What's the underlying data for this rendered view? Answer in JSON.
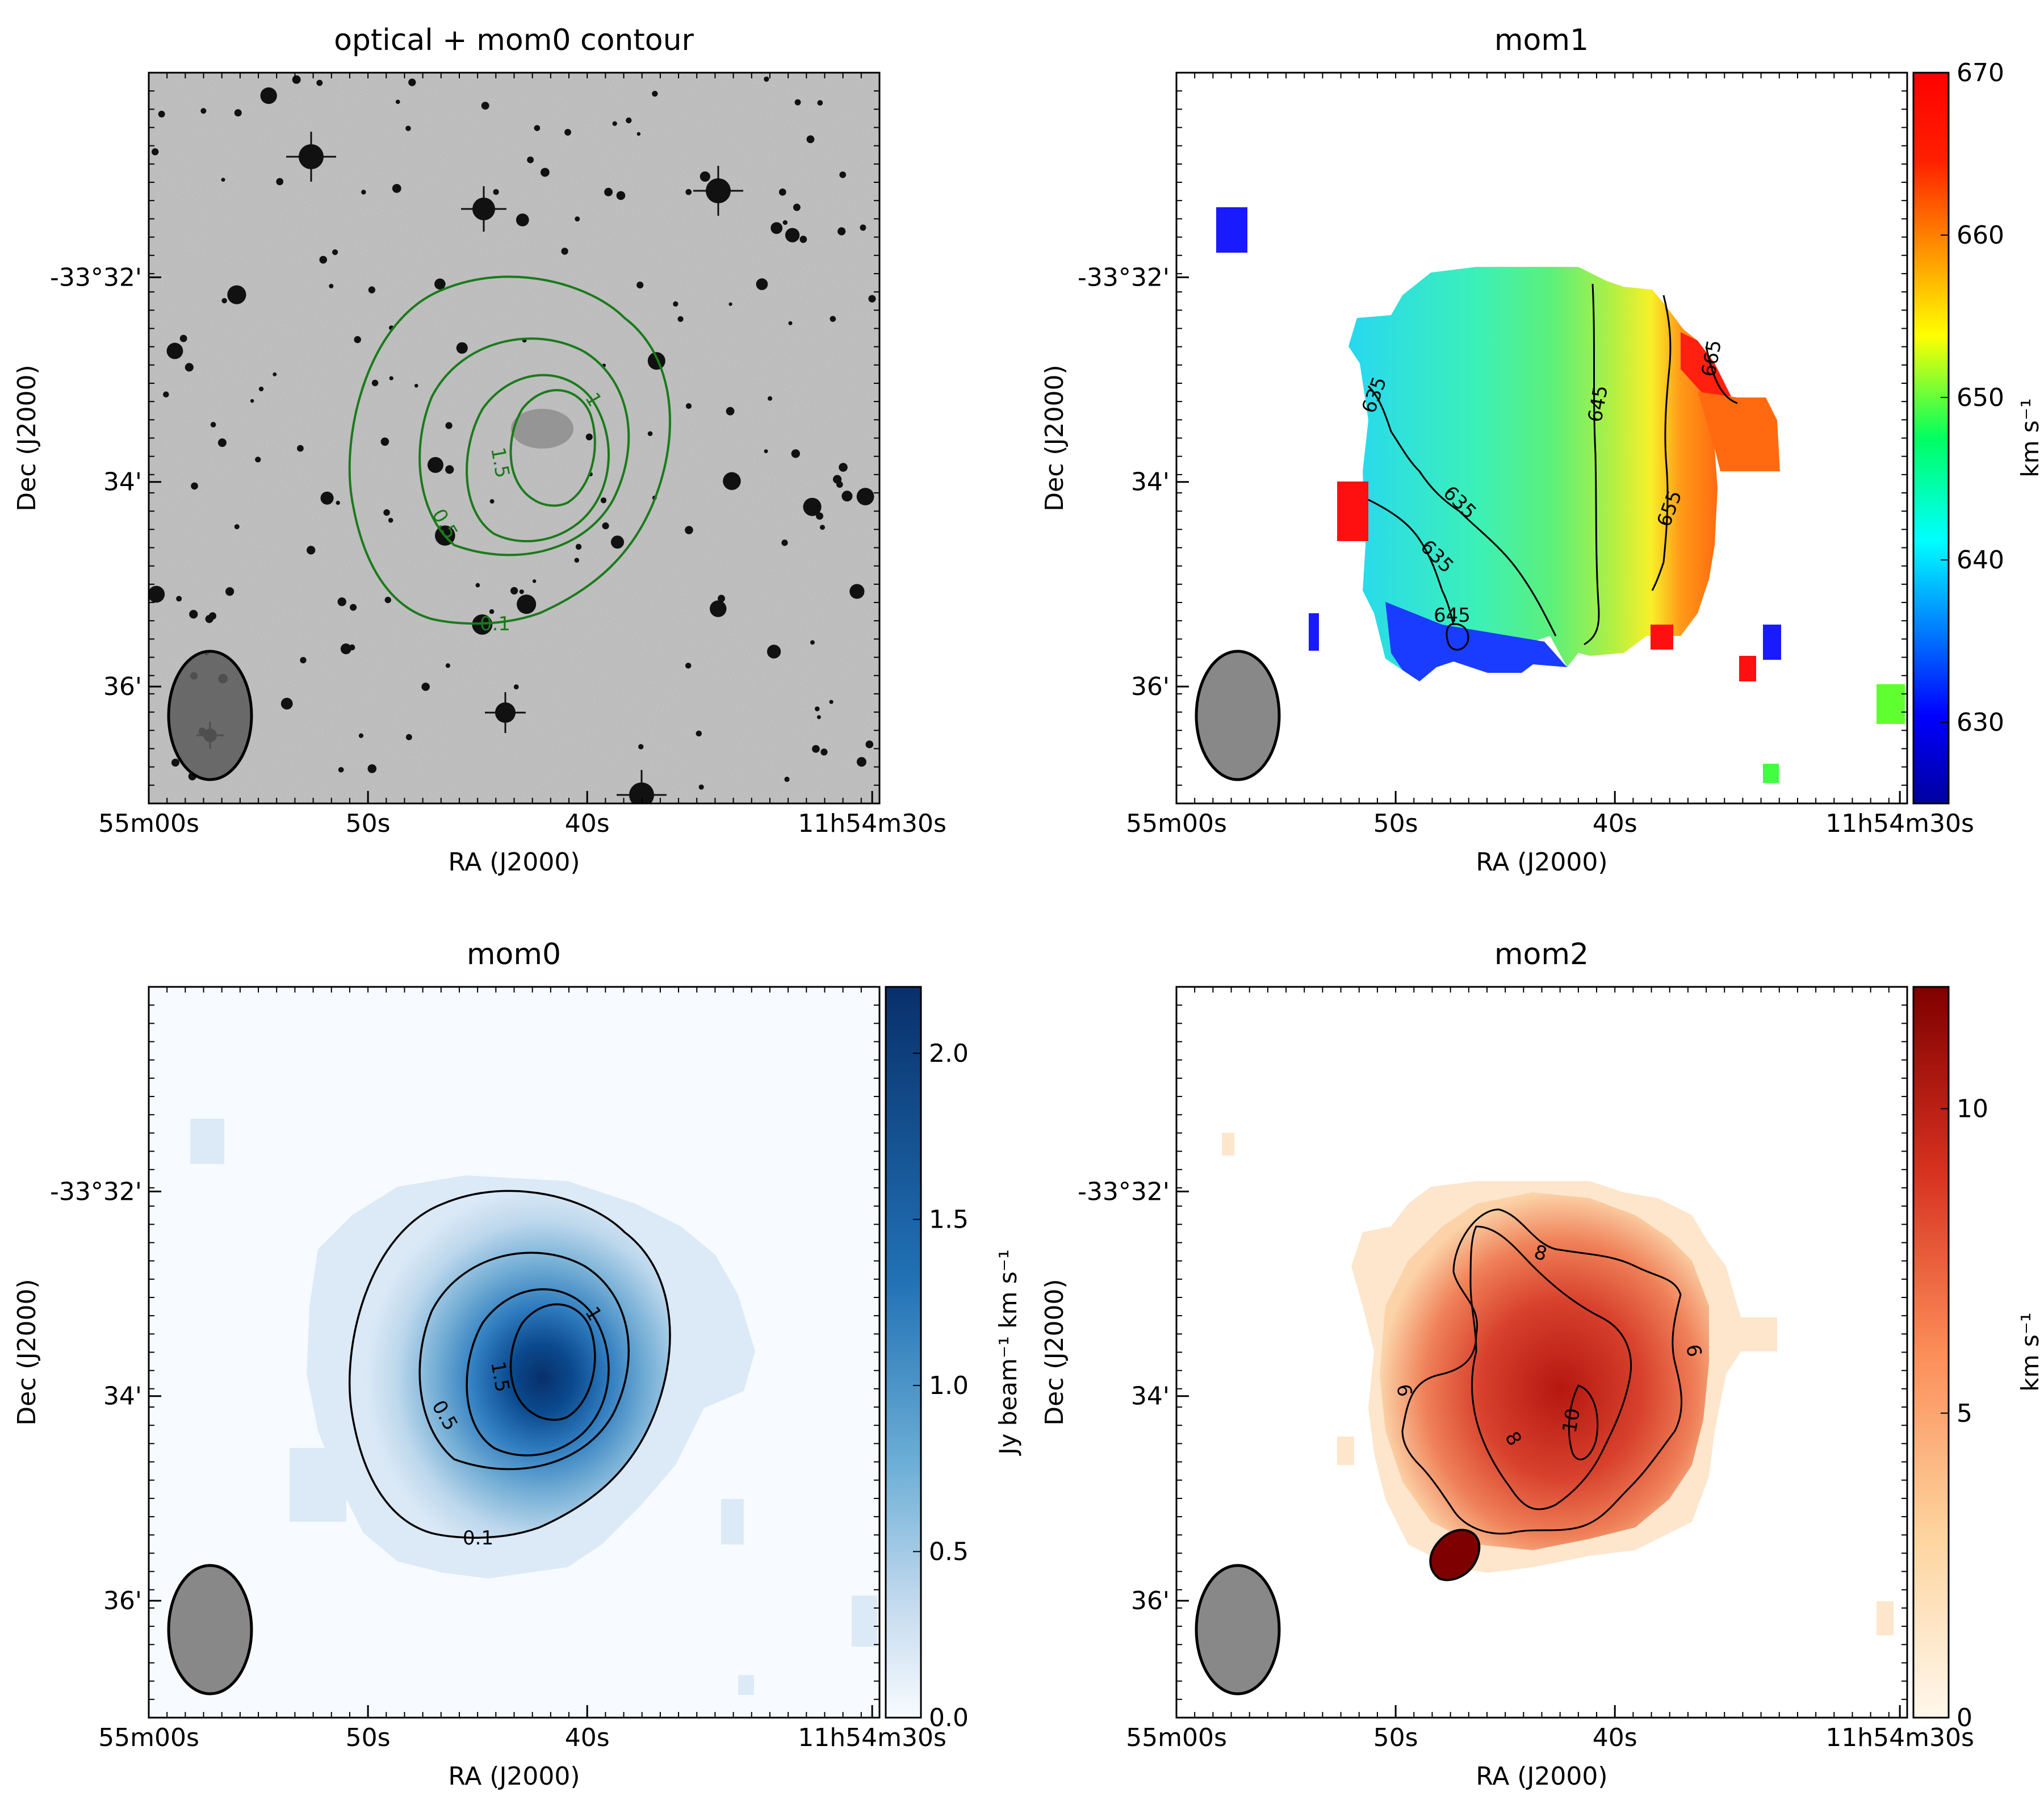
{
  "figure": {
    "xlabel": "RA (J2000)",
    "ylabel": "Dec (J2000)",
    "ra_ticks": [
      "55m00s",
      "50s",
      "40s",
      "11h54m30s"
    ],
    "dec_ticks": [
      "-33°32'",
      "34'",
      "36'"
    ]
  },
  "chart_data": [
    {
      "type": "heatmap",
      "title": "optical + mom0 contour",
      "xlabel": "RA (J2000)",
      "ylabel": "Dec (J2000)",
      "colormap": "gray",
      "contour_color": "#1a7a1a",
      "contour_levels": [
        "0.1",
        "0.5",
        "1",
        "1.5"
      ],
      "colorbar": null
    },
    {
      "type": "heatmap",
      "title": "mom1",
      "xlabel": "RA (J2000)",
      "ylabel": "Dec (J2000)",
      "colormap": "jet",
      "contour_color": "#000000",
      "contour_levels": [
        "635",
        "635",
        "635",
        "645",
        "645",
        "655",
        "665"
      ],
      "colorbar": {
        "min": 625,
        "max": 670,
        "ticks": [
          "630",
          "640",
          "650",
          "660",
          "670"
        ],
        "label": "km s⁻¹"
      }
    },
    {
      "type": "heatmap",
      "title": "mom0",
      "xlabel": "RA (J2000)",
      "ylabel": "Dec (J2000)",
      "colormap": "Blues (sqrt stretch)",
      "contour_color": "#000000",
      "contour_levels": [
        "0.1",
        "0.5",
        "1",
        "1.5"
      ],
      "colorbar": {
        "min": 0.0,
        "max": 2.2,
        "ticks": [
          "0.0",
          "0.5",
          "1.0",
          "1.5",
          "2.0"
        ],
        "label": "Jy beam⁻¹ km s⁻¹"
      }
    },
    {
      "type": "heatmap",
      "title": "mom2",
      "xlabel": "RA (J2000)",
      "ylabel": "Dec (J2000)",
      "colormap": "OrRd",
      "contour_color": "#000000",
      "contour_levels": [
        "6",
        "6",
        "8",
        "8",
        "10"
      ],
      "colorbar": {
        "min": 0,
        "max": 12,
        "ticks": [
          "0",
          "5",
          "10"
        ],
        "label": "km s⁻¹"
      }
    }
  ]
}
